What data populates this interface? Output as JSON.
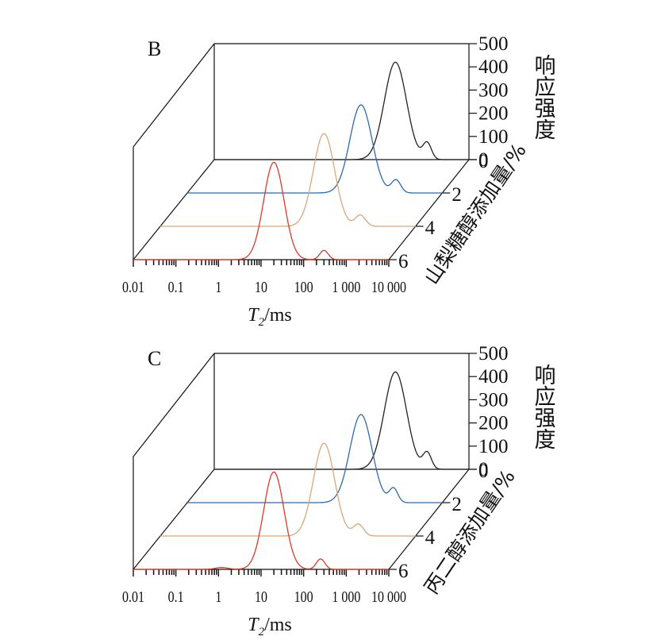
{
  "chart_data": [
    {
      "type": "line",
      "panel_label": "B",
      "xlabel_symbol": "T",
      "xlabel_sub": "2",
      "xlabel_unit": "/ms",
      "x_scale": "log",
      "xlim": [
        0.01,
        10000
      ],
      "x_ticks": [
        "0.01",
        "0.1",
        "1",
        "10",
        "100",
        "1 000",
        "10 000"
      ],
      "x_tick_values": [
        0.01,
        0.1,
        1,
        10,
        100,
        1000,
        10000
      ],
      "zlabel": "响应强度",
      "zlim": [
        0,
        500
      ],
      "z_ticks": [
        0,
        100,
        200,
        300,
        400,
        500
      ],
      "ylabel": "山梨糖醇添加量/%",
      "y_ticks": [
        "0",
        "2",
        "4",
        "6"
      ],
      "grid": false,
      "legend": "none",
      "series": [
        {
          "level": "0",
          "color": "#222222",
          "peaks": [
            {
              "t2": 180,
              "amp": 420,
              "w": 0.26
            },
            {
              "t2": 1000,
              "amp": 70,
              "w": 0.1
            }
          ]
        },
        {
          "level": "2",
          "color": "#2e6aa8",
          "peaks": [
            {
              "t2": 120,
              "amp": 380,
              "w": 0.26
            },
            {
              "t2": 800,
              "amp": 55,
              "w": 0.11
            }
          ]
        },
        {
          "level": "4",
          "color": "#d9a67a",
          "peaks": [
            {
              "t2": 70,
              "amp": 400,
              "w": 0.25
            },
            {
              "t2": 500,
              "amp": 48,
              "w": 0.12
            }
          ]
        },
        {
          "level": "6",
          "color": "#d93a2a",
          "peaks": [
            {
              "t2": 20,
              "amp": 420,
              "w": 0.24
            },
            {
              "t2": 300,
              "amp": 40,
              "w": 0.1
            }
          ]
        }
      ]
    },
    {
      "type": "line",
      "panel_label": "C",
      "xlabel_symbol": "T",
      "xlabel_sub": "2",
      "xlabel_unit": "/ms",
      "x_scale": "log",
      "xlim": [
        0.01,
        10000
      ],
      "x_ticks": [
        "0.01",
        "0.1",
        "1",
        "10",
        "100",
        "1 000",
        "10 000"
      ],
      "x_tick_values": [
        0.01,
        0.1,
        1,
        10,
        100,
        1000,
        10000
      ],
      "zlabel": "响应强度",
      "zlim": [
        0,
        500
      ],
      "z_ticks": [
        0,
        100,
        200,
        300,
        400,
        500
      ],
      "ylabel": "丙二醇添加量/%",
      "y_ticks": [
        "0",
        "2",
        "4",
        "6"
      ],
      "grid": false,
      "legend": "none",
      "series": [
        {
          "level": "0",
          "color": "#222222",
          "peaks": [
            {
              "t2": 180,
              "amp": 420,
              "w": 0.26
            },
            {
              "t2": 1000,
              "amp": 70,
              "w": 0.1
            }
          ]
        },
        {
          "level": "2",
          "color": "#2e6aa8",
          "peaks": [
            {
              "t2": 120,
              "amp": 380,
              "w": 0.26
            },
            {
              "t2": 700,
              "amp": 60,
              "w": 0.1
            }
          ]
        },
        {
          "level": "4",
          "color": "#d9a67a",
          "peaks": [
            {
              "t2": 70,
              "amp": 400,
              "w": 0.25
            },
            {
              "t2": 450,
              "amp": 50,
              "w": 0.12
            }
          ]
        },
        {
          "level": "6",
          "color": "#d93a2a",
          "peaks": [
            {
              "t2": 20,
              "amp": 420,
              "w": 0.24
            },
            {
              "t2": 250,
              "amp": 45,
              "w": 0.1
            },
            {
              "t2": 1.2,
              "amp": 8,
              "w": 0.15
            }
          ]
        }
      ]
    }
  ]
}
